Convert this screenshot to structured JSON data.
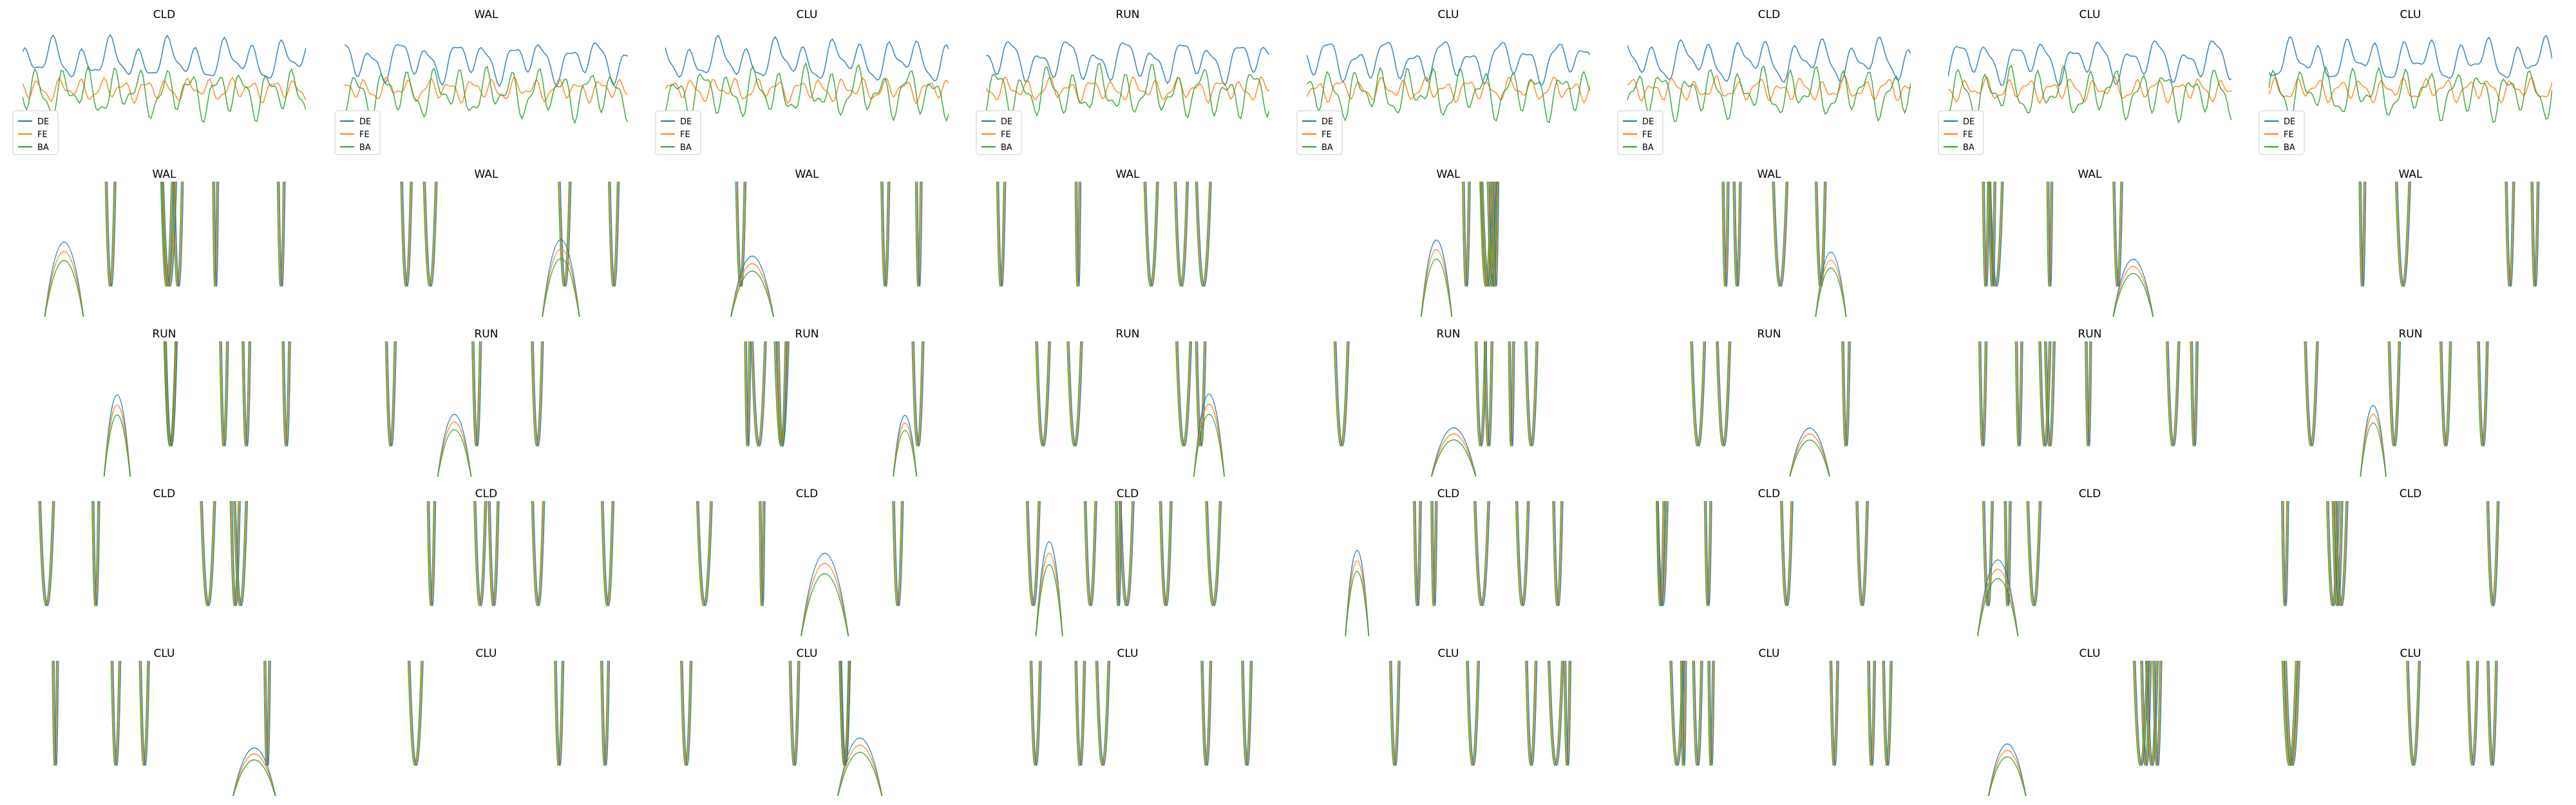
{
  "colors": {
    "DE": "#1f77b4",
    "FE": "#ff7f0e",
    "BA": "#2ca02c"
  },
  "chart_data": {
    "type": "line",
    "grid": false,
    "axes_visible": false,
    "legend_location": "lower left (top row panels only)",
    "rows": [
      {
        "titles": [
          "CLD",
          "WAL",
          "CLU",
          "RUN",
          "CLU",
          "CLD",
          "CLU",
          "CLU"
        ],
        "pattern": "dense overlapping oscillating signals"
      },
      {
        "titles": [
          "WAL",
          "WAL",
          "WAL",
          "WAL",
          "WAL",
          "WAL",
          "WAL",
          "WAL"
        ],
        "pattern": "sparse spikes exceeding the axis range"
      },
      {
        "titles": [
          "RUN",
          "RUN",
          "RUN",
          "RUN",
          "RUN",
          "RUN",
          "RUN",
          "RUN"
        ],
        "pattern": "spikes exceeding the axis range with small arches"
      },
      {
        "titles": [
          "CLD",
          "CLD",
          "CLD",
          "CLD",
          "CLD",
          "CLD",
          "CLD",
          "CLD"
        ],
        "pattern": "few spikes and U-shaped dips"
      },
      {
        "titles": [
          "CLU",
          "CLU",
          "CLU",
          "CLU",
          "CLU",
          "CLU",
          "CLU",
          "CLU"
        ],
        "pattern": "regular spikes exceeding the axis range"
      }
    ],
    "legend": [
      "DE",
      "FE",
      "BA"
    ],
    "series": [
      {
        "name": "DE",
        "color": "#1f77b4"
      },
      {
        "name": "FE",
        "color": "#ff7f0e"
      },
      {
        "name": "BA",
        "color": "#2ca02c"
      }
    ]
  }
}
